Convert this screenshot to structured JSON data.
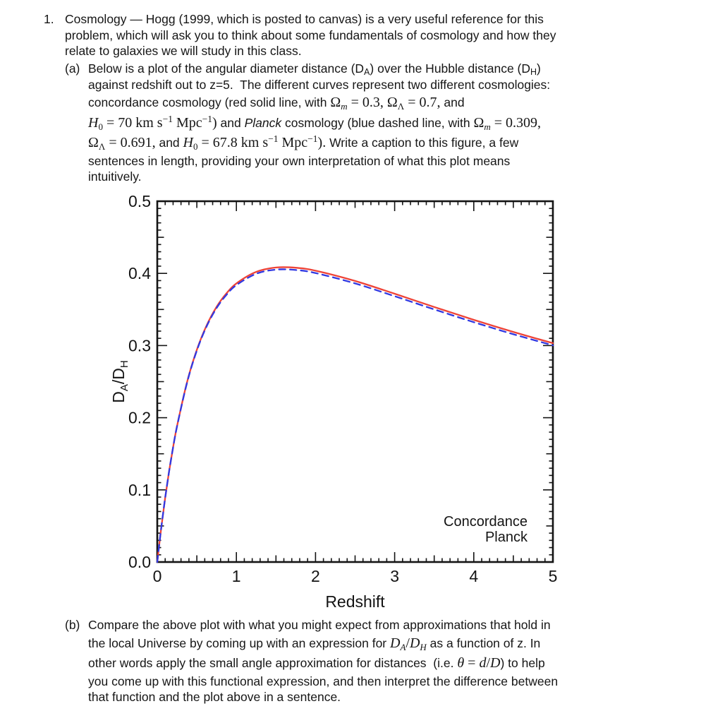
{
  "problem": {
    "number": "1.",
    "intro_lines": [
      "Cosmology — Hogg (1999, which is posted to canvas) is a very useful reference for this",
      "problem, which will ask you to think about some fundamentals of cosmology and how they",
      "relate to galaxies we will study in this class."
    ],
    "part_a": {
      "label": "(a)",
      "lines": [
        [
          {
            "t": "Below is a plot of the angular diameter distance (D"
          },
          {
            "t": "A",
            "c": "t sub"
          },
          {
            "t": ") over the Hubble distance (D"
          },
          {
            "t": "H",
            "c": "t sub"
          },
          {
            "t": ")"
          }
        ],
        [
          {
            "t": "against redshift out to z=5.  The different curves represent two different cosmologies:"
          }
        ],
        [
          {
            "t": "concordance cosmology (red solid line, with "
          },
          {
            "t": "Ω",
            "c": "m"
          },
          {
            "t": "m",
            "c": "mi sub"
          },
          {
            "t": " = 0.3, ",
            "c": "m"
          },
          {
            "t": "Ω",
            "c": "m"
          },
          {
            "t": "Λ",
            "c": "m sub"
          },
          {
            "t": " = 0.7,",
            "c": "m"
          },
          {
            "t": " and"
          }
        ],
        [
          {
            "t": "H",
            "c": "mi"
          },
          {
            "t": "0",
            "c": "m sub"
          },
          {
            "t": " = 70 km s",
            "c": "m"
          },
          {
            "t": "−1",
            "c": "m sup"
          },
          {
            "t": " Mpc",
            "c": "m"
          },
          {
            "t": "−1",
            "c": "m sup"
          },
          {
            "t": ")",
            "c": "m"
          },
          {
            "t": " and "
          },
          {
            "t": "Planck",
            "c": "ti"
          },
          {
            "t": " cosmology (blue dashed line, with "
          },
          {
            "t": "Ω",
            "c": "m"
          },
          {
            "t": "m",
            "c": "mi sub"
          },
          {
            "t": " = 0.309,",
            "c": "m"
          }
        ],
        [
          {
            "t": "Ω",
            "c": "m"
          },
          {
            "t": "Λ",
            "c": "m sub"
          },
          {
            "t": " = 0.691,",
            "c": "m"
          },
          {
            "t": " and "
          },
          {
            "t": "H",
            "c": "mi"
          },
          {
            "t": "0",
            "c": "m sub"
          },
          {
            "t": " = 67.8 km s",
            "c": "m"
          },
          {
            "t": "−1",
            "c": "m sup"
          },
          {
            "t": " Mpc",
            "c": "m"
          },
          {
            "t": "−1",
            "c": "m sup"
          },
          {
            "t": ").",
            "c": "m"
          },
          {
            "t": " Write a caption to this figure, a few"
          }
        ],
        [
          {
            "t": "sentences in length, providing your own interpretation of what this plot means"
          }
        ],
        [
          {
            "t": "intuitively."
          }
        ]
      ]
    },
    "part_b": {
      "label": "(b)",
      "lines": [
        [
          {
            "t": "Compare the above plot with what you might expect from approximations that hold in"
          }
        ],
        [
          {
            "t": "the local Universe by coming up with an expression for "
          },
          {
            "t": "D",
            "c": "mi"
          },
          {
            "t": "A",
            "c": "mi sub"
          },
          {
            "t": "/",
            "c": "m"
          },
          {
            "t": "D",
            "c": "mi"
          },
          {
            "t": "H",
            "c": "mi sub"
          },
          {
            "t": " as a function of z. In"
          }
        ],
        [
          {
            "t": "other words apply the small angle approximation for distances  (i.e. "
          },
          {
            "t": "θ",
            "c": "mi"
          },
          {
            "t": " = ",
            "c": "m"
          },
          {
            "t": "d",
            "c": "mi"
          },
          {
            "t": "/",
            "c": "m"
          },
          {
            "t": "D",
            "c": "mi"
          },
          {
            "t": ") to help"
          }
        ],
        [
          {
            "t": "you come up with this functional expression, and then interpret the difference between"
          }
        ],
        [
          {
            "t": "that function and the plot above in a sentence."
          }
        ]
      ]
    }
  },
  "chart_data": {
    "type": "line",
    "title": "",
    "xlabel": "Redshift",
    "ylabel": "DA/DH",
    "ylabel_parts": [
      "D",
      "A",
      "/D",
      "H"
    ],
    "xlim": [
      0,
      5
    ],
    "ylim": [
      0,
      0.5
    ],
    "x_tick_labels": [
      "0",
      "1",
      "2",
      "3",
      "4",
      "5"
    ],
    "x_major_ticks": [
      0,
      1,
      2,
      3,
      4,
      5
    ],
    "y_tick_labels": [
      "0.0",
      "0.1",
      "0.2",
      "0.3",
      "0.4",
      "0.5"
    ],
    "y_major_ticks": [
      0,
      0.1,
      0.2,
      0.3,
      0.4,
      0.5
    ],
    "x_minor_step": 0.1,
    "y_minor_step": 0.01,
    "grid": false,
    "legend_position": "bottom-right",
    "x": [
      0,
      0.05,
      0.1,
      0.15,
      0.2,
      0.25,
      0.375,
      0.5,
      0.625,
      0.75,
      0.875,
      1,
      1.25,
      1.5,
      1.75,
      2,
      2.5,
      3,
      3.5,
      4,
      4.5,
      5
    ],
    "series": [
      {
        "name": "Concordance",
        "color": "#ee4337",
        "style": "solid",
        "values": [
          0,
          0.0471,
          0.0888,
          0.1259,
          0.1589,
          0.1883,
          0.2487,
          0.294,
          0.3281,
          0.3536,
          0.3724,
          0.3861,
          0.4021,
          0.4081,
          0.4078,
          0.4037,
          0.3895,
          0.3718,
          0.3534,
          0.3356,
          0.3189,
          0.3033
        ]
      },
      {
        "name": "Planck",
        "color": "#3139e2",
        "style": "dashed",
        "values": [
          0,
          0.0471,
          0.0888,
          0.1258,
          0.1587,
          0.188,
          0.248,
          0.2931,
          0.3268,
          0.352,
          0.3704,
          0.3838,
          0.3995,
          0.4052,
          0.4047,
          0.4005,
          0.3861,
          0.3684,
          0.3501,
          0.3324,
          0.3157,
          0.3003
        ]
      }
    ]
  }
}
